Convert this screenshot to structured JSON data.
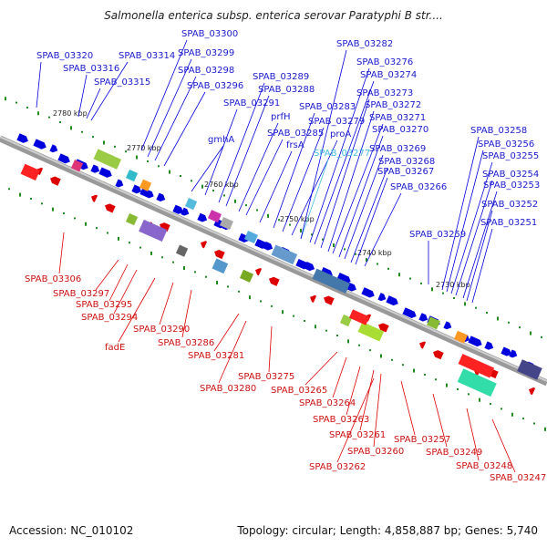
{
  "title": "Salmonella enterica subsp. enterica serovar Paratyphi B str....",
  "footer": {
    "accession": "Accession: NC_010102",
    "summary": "Topology: circular; Length: 4,858,887 bp; Genes: 5,740"
  },
  "colors": {
    "forward": "#0000dd",
    "reverse": "#dd0000",
    "highlight": "#44bbdd",
    "backbone": "#888888",
    "tick": "#228822"
  },
  "scale_labels": [
    "2780 kbp",
    "2770 kbp",
    "2760 kbp",
    "2750 kbp",
    "2740 kbp",
    "2730 kbp"
  ],
  "forward_labels": [
    "SPAB_03320",
    "SPAB_03316",
    "SPAB_03314",
    "SPAB_03315",
    "SPAB_03300",
    "SPAB_03299",
    "SPAB_03298",
    "SPAB_03296",
    "gmhA",
    "SPAB_03289",
    "SPAB_03288",
    "SPAB_03291",
    "prfH",
    "SPAB_03285",
    "frsA",
    "SPAB_03283",
    "SPAB_03279",
    "proA",
    "SPAB_03277",
    "SPAB_03282",
    "SPAB_03276",
    "SPAB_03274",
    "SPAB_03273",
    "SPAB_03272",
    "SPAB_03271",
    "SPAB_03270",
    "SPAB_03269",
    "SPAB_03268",
    "SPAB_03267",
    "SPAB_03266",
    "SPAB_03259",
    "SPAB_03258",
    "SPAB_03256",
    "SPAB_03255",
    "SPAB_03254",
    "SPAB_03253",
    "SPAB_03252",
    "SPAB_03251"
  ],
  "reverse_labels": [
    "SPAB_03306",
    "SPAB_03297",
    "SPAB_03295",
    "SPAB_03294",
    "fadE",
    "SPAB_03290",
    "SPAB_03286",
    "SPAB_03281",
    "SPAB_03280",
    "SPAB_03275",
    "SPAB_03265",
    "SPAB_03264",
    "SPAB_03263",
    "SPAB_03261",
    "SPAB_03260",
    "SPAB_03262",
    "SPAB_03257",
    "SPAB_03249",
    "SPAB_03248",
    "SPAB_03247"
  ]
}
